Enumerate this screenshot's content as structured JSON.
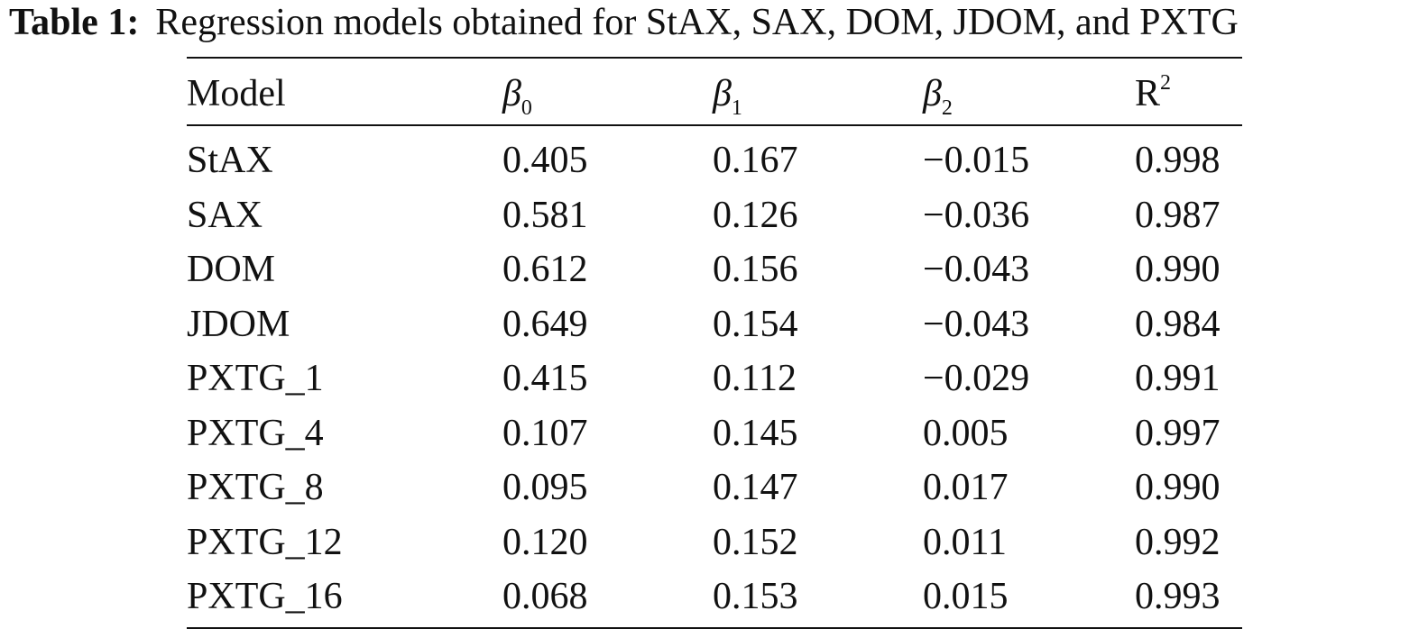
{
  "caption": {
    "label": "Table 1:",
    "text": "Regression models obtained for StAX, SAX, DOM, JDOM, and PXTG"
  },
  "table": {
    "headers": {
      "model": "Model",
      "b0_symbol": "β",
      "b0_sub": "0",
      "b1_symbol": "β",
      "b1_sub": "1",
      "b2_symbol": "β",
      "b2_sub": "2",
      "r2_base": "R",
      "r2_sup": "2"
    },
    "rows": [
      {
        "model": "StAX",
        "b0": "0.405",
        "b1": "0.167",
        "b2": "−0.015",
        "r2": "0.998"
      },
      {
        "model": "SAX",
        "b0": "0.581",
        "b1": "0.126",
        "b2": "−0.036",
        "r2": "0.987"
      },
      {
        "model": "DOM",
        "b0": "0.612",
        "b1": "0.156",
        "b2": "−0.043",
        "r2": "0.990"
      },
      {
        "model": "JDOM",
        "b0": "0.649",
        "b1": "0.154",
        "b2": "−0.043",
        "r2": "0.984"
      },
      {
        "model": "PXTG_1",
        "b0": "0.415",
        "b1": "0.112",
        "b2": "−0.029",
        "r2": "0.991"
      },
      {
        "model": "PXTG_4",
        "b0": "0.107",
        "b1": "0.145",
        "b2": "0.005",
        "r2": "0.997"
      },
      {
        "model": "PXTG_8",
        "b0": "0.095",
        "b1": "0.147",
        "b2": "0.017",
        "r2": "0.990"
      },
      {
        "model": "PXTG_12",
        "b0": "0.120",
        "b1": "0.152",
        "b2": "0.011",
        "r2": "0.992"
      },
      {
        "model": "PXTG_16",
        "b0": "0.068",
        "b1": "0.153",
        "b2": "0.015",
        "r2": "0.993"
      }
    ]
  }
}
